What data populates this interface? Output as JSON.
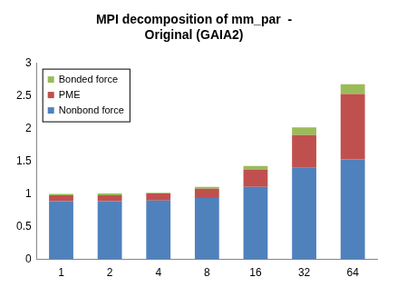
{
  "chart_data": {
    "type": "bar",
    "title": [
      "MPI decomposition of mm_par  -",
      "Original (GAIA2)"
    ],
    "categories": [
      "1",
      "2",
      "4",
      "8",
      "16",
      "32",
      "64"
    ],
    "series": [
      {
        "name": "Nonbond force",
        "color": "#4f81bd",
        "values": [
          0.89,
          0.89,
          0.9,
          0.94,
          1.11,
          1.4,
          1.53
        ]
      },
      {
        "name": "PME",
        "color": "#c0504d",
        "values": [
          0.09,
          0.09,
          0.11,
          0.14,
          0.26,
          0.5,
          1.0
        ]
      },
      {
        "name": "Bonded force",
        "color": "#9bbb59",
        "values": [
          0.02,
          0.03,
          0.01,
          0.03,
          0.06,
          0.12,
          0.15
        ]
      }
    ],
    "stacked": true,
    "ylim": [
      0,
      3
    ],
    "yticks": [
      0,
      0.5,
      1,
      1.5,
      2,
      2.5,
      3
    ],
    "grid": false,
    "legend": "upper left"
  }
}
